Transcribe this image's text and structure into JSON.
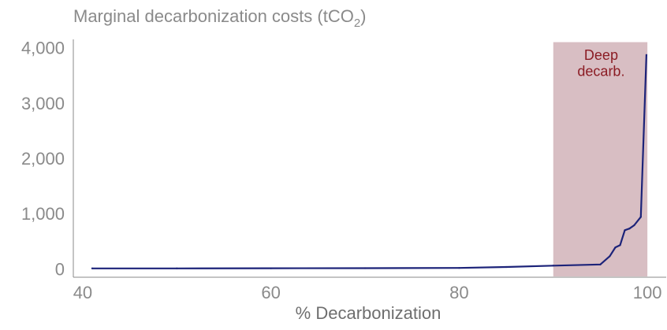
{
  "chart_data": {
    "type": "line",
    "title": "Marginal decarbonization costs (tCO",
    "title_subscript": "2",
    "title_close": ")",
    "xlabel": "% Decarbonization",
    "ylabel": "",
    "xlim": [
      39,
      102
    ],
    "ylim": [
      -150,
      4150
    ],
    "x_ticks": [
      40,
      60,
      80,
      100
    ],
    "x_tick_labels": [
      "40",
      "60",
      "80",
      "100"
    ],
    "y_ticks": [
      0,
      1000,
      2000,
      3000,
      4000
    ],
    "y_tick_labels": [
      "0",
      "1,000",
      "2,000",
      "3,000",
      "4,000"
    ],
    "grid": false,
    "series": [
      {
        "color": "#1c2379",
        "x": [
          41,
          50,
          60,
          70,
          80,
          85,
          90,
          95,
          96,
          96.6,
          97.1,
          97.6,
          98.1,
          98.6,
          99.3,
          99.9
        ],
        "y": [
          10,
          10,
          12,
          14,
          18,
          35,
          60,
          80,
          230,
          390,
          430,
          700,
          730,
          790,
          940,
          3870
        ]
      }
    ],
    "highlight_band": {
      "x_start": 90,
      "x_end": 100,
      "color": "#d8bec3",
      "label_line1": "Deep",
      "label_line2": "decarb."
    }
  }
}
